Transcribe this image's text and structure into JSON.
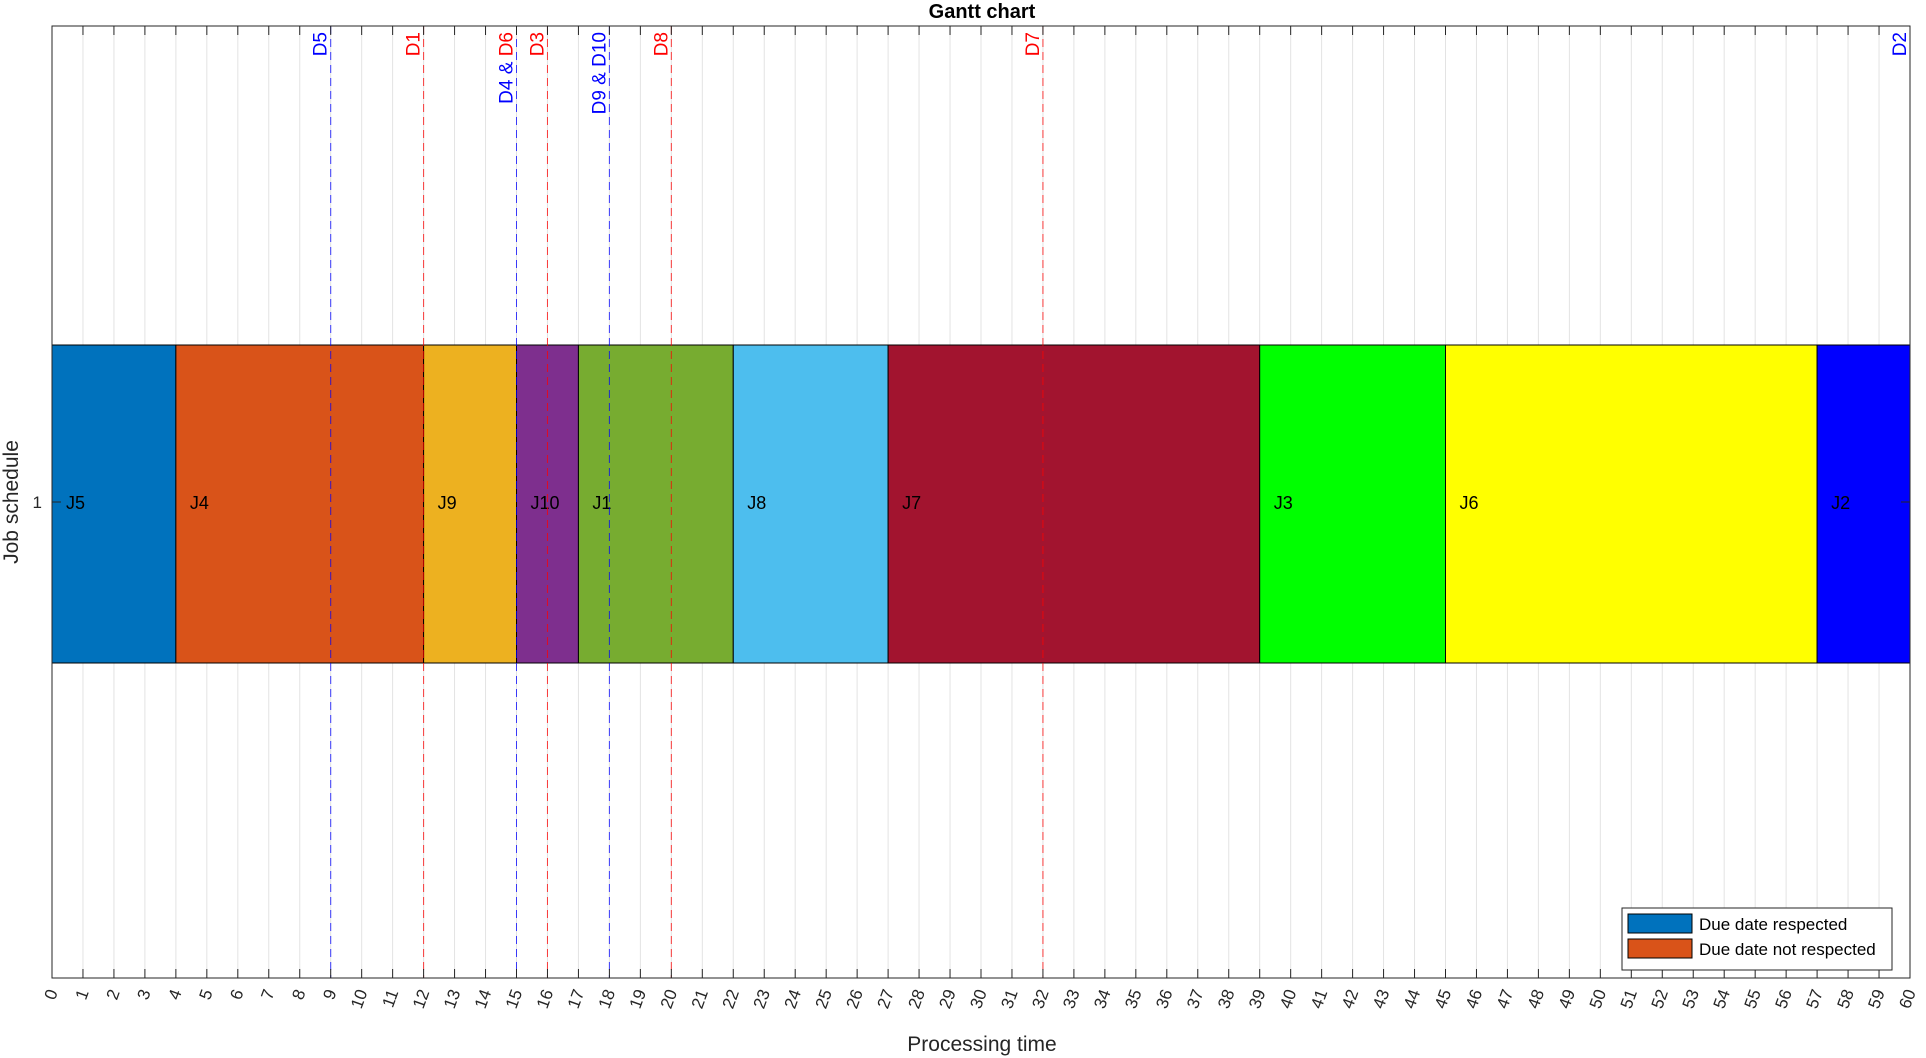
{
  "chart_data": {
    "type": "gantt",
    "title": "Gantt chart",
    "xlabel": "Processing time",
    "ylabel": "Job schedule",
    "xlim": [
      0,
      60
    ],
    "xticks": [
      0,
      1,
      2,
      3,
      4,
      5,
      6,
      7,
      8,
      9,
      10,
      11,
      12,
      13,
      14,
      15,
      16,
      17,
      18,
      19,
      20,
      21,
      22,
      23,
      24,
      25,
      26,
      27,
      28,
      29,
      30,
      31,
      32,
      33,
      34,
      35,
      36,
      37,
      38,
      39,
      40,
      41,
      42,
      43,
      44,
      45,
      46,
      47,
      48,
      49,
      50,
      51,
      52,
      53,
      54,
      55,
      56,
      57,
      58,
      59,
      60
    ],
    "yticks": [
      "1"
    ],
    "grid": true,
    "jobs": [
      {
        "label": "J5",
        "start": 0,
        "end": 4,
        "color": "#0072BD"
      },
      {
        "label": "J4",
        "start": 4,
        "end": 12,
        "color": "#D95319"
      },
      {
        "label": "J9",
        "start": 12,
        "end": 15,
        "color": "#EDB120"
      },
      {
        "label": "J10",
        "start": 15,
        "end": 17,
        "color": "#7E2F8E"
      },
      {
        "label": "J1",
        "start": 17,
        "end": 22,
        "color": "#77AC30"
      },
      {
        "label": "J8",
        "start": 22,
        "end": 27,
        "color": "#4DBEEE"
      },
      {
        "label": "J7",
        "start": 27,
        "end": 39,
        "color": "#A2142F"
      },
      {
        "label": "J3",
        "start": 39,
        "end": 45,
        "color": "#00FF00"
      },
      {
        "label": "J6",
        "start": 45,
        "end": 57,
        "color": "#FFFF00"
      },
      {
        "label": "J2",
        "start": 57,
        "end": 60,
        "color": "#0000FF"
      }
    ],
    "due_dates": [
      {
        "label": "D5",
        "x": 9,
        "respected": true
      },
      {
        "label": "D1",
        "x": 12,
        "respected": false
      },
      {
        "label": "D4 & ",
        "x": 15,
        "respected": true,
        "suffix": "D6",
        "suffix_respected": false
      },
      {
        "label": "D3",
        "x": 16,
        "respected": false
      },
      {
        "label": "D9 & D10",
        "x": 18,
        "respected": true
      },
      {
        "label": "D8",
        "x": 20,
        "respected": false
      },
      {
        "label": "D7",
        "x": 32,
        "respected": false
      },
      {
        "label": "D2",
        "x": 60,
        "respected": true
      }
    ],
    "legend": {
      "position": "bottom-right",
      "entries": [
        {
          "label": "Due date respected",
          "color": "#0072BD"
        },
        {
          "label": "Due date not respected",
          "color": "#D95319"
        }
      ]
    },
    "colors": {
      "respected": "#0000FF",
      "not_respected": "#FF0000"
    }
  }
}
